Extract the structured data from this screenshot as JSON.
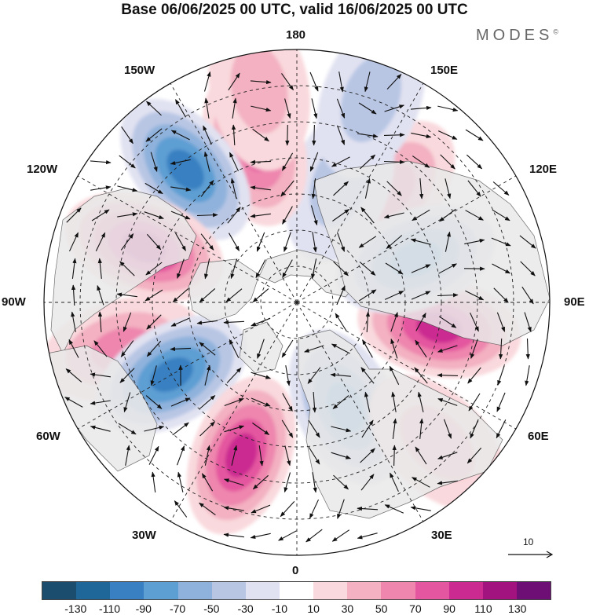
{
  "title": "Base 06/06/2025 00 UTC, valid 16/06/2025 00 UTC",
  "brand": "MODES",
  "brand_mark": "©",
  "longitude_labels": {
    "top": "180",
    "bottom": "0",
    "left": "90W",
    "right": "90E",
    "upper_left_1": "150W",
    "upper_left_2": "120W",
    "upper_right_1": "150E",
    "upper_right_2": "120E",
    "lower_left_1": "60W",
    "lower_left_2": "30W",
    "lower_right_1": "60E",
    "lower_right_2": "30E"
  },
  "reference_vector": {
    "label": "10"
  },
  "colorbar": {
    "colors": [
      "#1b4e6e",
      "#1f6699",
      "#3880c1",
      "#5d9ed3",
      "#8fb2dc",
      "#b8c6e4",
      "#e1e2f1",
      "#ffffff",
      "#f9d9dd",
      "#f3b1c1",
      "#ee86ae",
      "#e4569f",
      "#cb2b91",
      "#a3137f",
      "#6e0f75"
    ],
    "tick_labels": [
      "-130",
      "-110",
      "-90",
      "-70",
      "-50",
      "-30",
      "-10",
      "10",
      "30",
      "50",
      "70",
      "90",
      "110",
      "130"
    ]
  },
  "anomaly_centers": [
    {
      "lon": 140,
      "lat": 50,
      "value": 65
    },
    {
      "lon": 160,
      "lat": 55,
      "value": -40
    },
    {
      "lon": -165,
      "lat": 45,
      "value": 70
    },
    {
      "lon": -140,
      "lat": 42,
      "value": -95
    },
    {
      "lon": -110,
      "lat": 45,
      "value": 90
    },
    {
      "lon": -75,
      "lat": 40,
      "value": 60
    },
    {
      "lon": -60,
      "lat": 50,
      "value": -100
    },
    {
      "lon": -20,
      "lat": 45,
      "value": 100
    },
    {
      "lon": 25,
      "lat": 58,
      "value": -85
    },
    {
      "lon": 80,
      "lat": 50,
      "value": 105
    },
    {
      "lon": 110,
      "lat": 55,
      "value": -70
    },
    {
      "lon": 160,
      "lat": 30,
      "value": -30
    },
    {
      "lon": -170,
      "lat": 30,
      "value": 40
    },
    {
      "lon": 45,
      "lat": 35,
      "value": 40
    }
  ]
}
